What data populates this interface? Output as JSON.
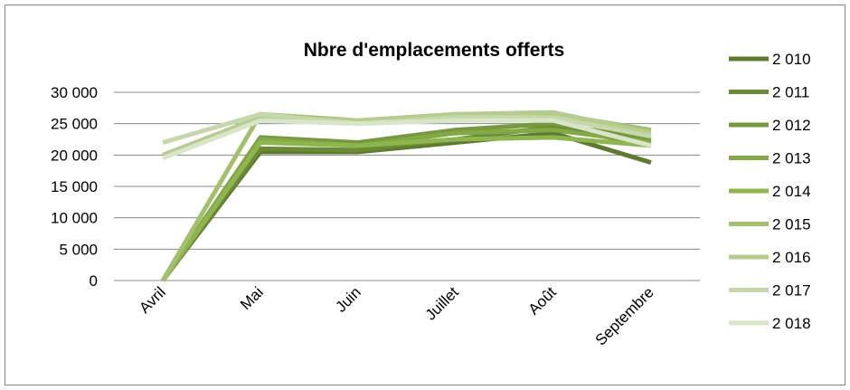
{
  "chart_data": {
    "type": "line",
    "title": "Nbre d'emplacements offerts",
    "categories": [
      "Avril",
      "Mai",
      "Juin",
      "Juillet",
      "Août",
      "Septembre"
    ],
    "series": [
      {
        "name": "2 010",
        "color": "#5e7a31",
        "values": [
          0,
          20500,
          20500,
          22000,
          23500,
          18800
        ]
      },
      {
        "name": "2 011",
        "color": "#6a8a36",
        "values": [
          0,
          21000,
          20800,
          22500,
          24500,
          21500
        ]
      },
      {
        "name": "2 012",
        "color": "#77993d",
        "values": [
          0,
          22800,
          22000,
          24000,
          25000,
          22500
        ]
      },
      {
        "name": "2 013",
        "color": "#83a846",
        "values": [
          0,
          22500,
          21500,
          23500,
          24000,
          22000
        ]
      },
      {
        "name": "2 014",
        "color": "#8fb54f",
        "values": [
          0,
          22000,
          21500,
          22500,
          22800,
          21500
        ]
      },
      {
        "name": "2 015",
        "color": "#a3c06f",
        "values": [
          0,
          26500,
          25500,
          26500,
          26500,
          24000
        ]
      },
      {
        "name": "2 016",
        "color": "#b5cc8e",
        "values": [
          20000,
          26000,
          25500,
          26500,
          26800,
          23500
        ]
      },
      {
        "name": "2 017",
        "color": "#c6d8ab",
        "values": [
          22000,
          26500,
          25000,
          26000,
          26000,
          23000
        ]
      },
      {
        "name": "2 018",
        "color": "#d9e5c8",
        "values": [
          19500,
          25500,
          25000,
          25500,
          25500,
          21500
        ]
      }
    ],
    "ylim": [
      0,
      30000
    ],
    "yticks": [
      0,
      {
        "value": 5000,
        "label": "5 000"
      },
      {
        "value": 10000,
        "label": "10 000"
      },
      {
        "value": 15000,
        "label": "15 000"
      },
      {
        "value": 20000,
        "label": "20 000"
      },
      {
        "value": 25000,
        "label": "25 000"
      },
      {
        "value": 30000,
        "label": "30 000"
      }
    ],
    "grid": true,
    "legend": "right"
  }
}
